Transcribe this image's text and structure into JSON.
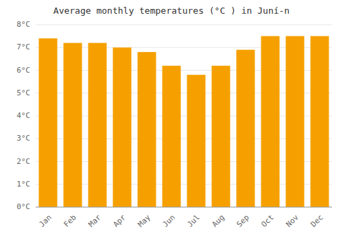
{
  "chart_data": {
    "type": "bar",
    "title": "Average monthly temperatures (°C ) in Juní-n",
    "categories": [
      "Jan",
      "Feb",
      "Mar",
      "Apr",
      "May",
      "Jun",
      "Jul",
      "Aug",
      "Sep",
      "Oct",
      "Nov",
      "Dec"
    ],
    "values": [
      7.4,
      7.2,
      7.2,
      7.0,
      6.8,
      6.2,
      5.8,
      6.2,
      6.9,
      7.5,
      7.5,
      7.5
    ],
    "color": "#F5A000",
    "ylim": [
      0,
      8
    ],
    "yticks": [
      {
        "value": 0,
        "label": "0°C"
      },
      {
        "value": 1,
        "label": "1°C"
      },
      {
        "value": 2,
        "label": "2°C"
      },
      {
        "value": 3,
        "label": "3°C"
      },
      {
        "value": 4,
        "label": "4°C"
      },
      {
        "value": 5,
        "label": "5°C"
      },
      {
        "value": 6,
        "label": "6°C"
      },
      {
        "value": 7,
        "label": "7°C"
      },
      {
        "value": 8,
        "label": "8°C"
      }
    ],
    "grid": true
  }
}
